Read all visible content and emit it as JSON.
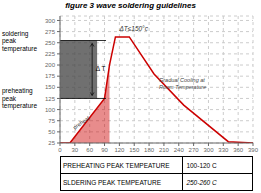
{
  "chart_data": {
    "type": "line",
    "title": "figure 3 wave soldering guidelines",
    "x": [
      0,
      20,
      90,
      100,
      112,
      140,
      190,
      250,
      340,
      390
    ],
    "values": [
      25,
      25,
      125,
      200,
      263,
      263,
      180,
      110,
      28,
      25
    ],
    "color": "#cc0000",
    "xlim": [
      0,
      390
    ],
    "ylim": [
      25,
      310
    ],
    "xticks": [
      0,
      30,
      60,
      90,
      120,
      150,
      180,
      210,
      240,
      270,
      300,
      330,
      360,
      390
    ],
    "yticks": [
      25,
      50,
      75,
      100,
      125,
      150,
      175,
      200,
      225,
      250,
      275,
      300
    ],
    "grid": true,
    "preheat_fill": {
      "x": [
        0,
        20,
        90,
        100
      ],
      "values": [
        25,
        25,
        125,
        200
      ],
      "base": 25,
      "color": "#cc0000"
    },
    "levels": [
      125,
      255
    ],
    "band_color": "#404040",
    "annotations": [
      "Δ T",
      "ΔT≤150°c",
      "Gradual Cooling at\nRoom Temperature",
      "preheat"
    ],
    "side_labels": [
      "preheating\npeak\ntemperature",
      "soldering\npeak\ntemperature"
    ],
    "table": [
      [
        "PREHEATING PEAK TEMPEATURE",
        "100-120 C"
      ],
      [
        "SLDERING PEAK TEMPEATURE",
        "250-260 C"
      ]
    ]
  }
}
